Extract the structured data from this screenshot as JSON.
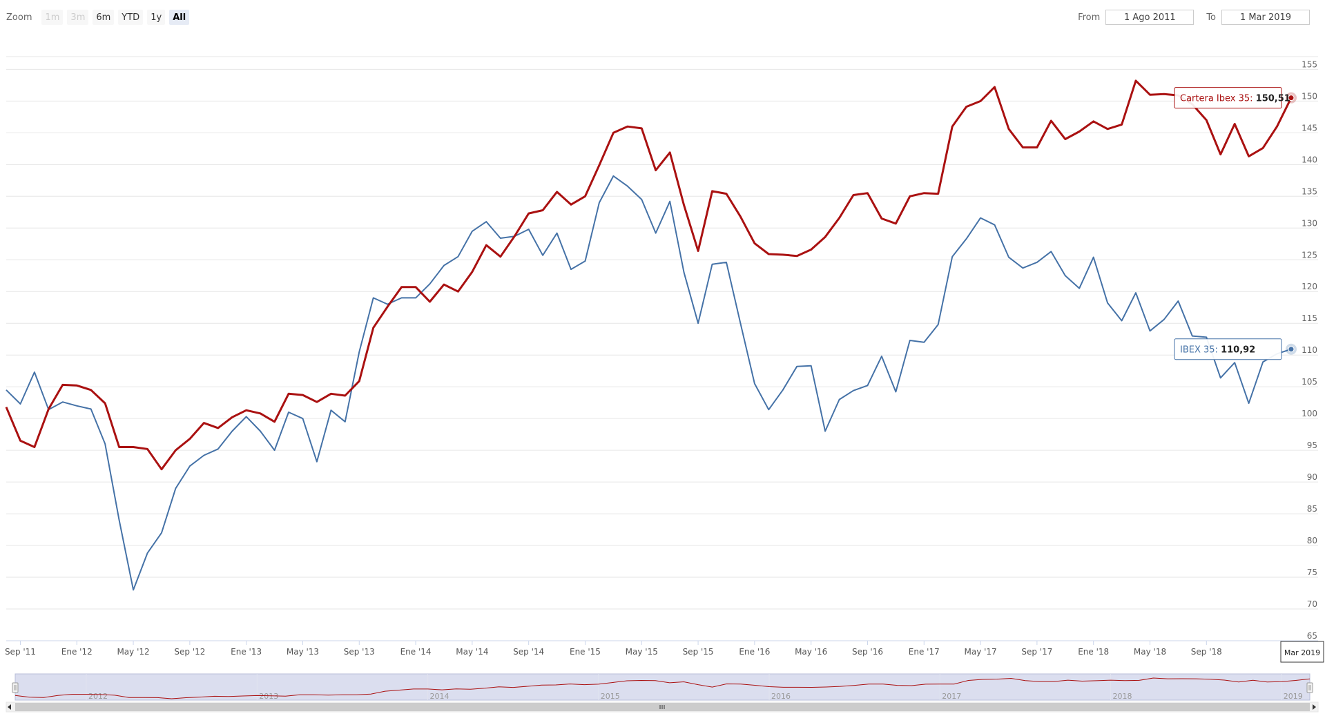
{
  "range_selector": {
    "zoom_label": "Zoom",
    "buttons": [
      {
        "label": "1m",
        "state": "disabled"
      },
      {
        "label": "3m",
        "state": "disabled"
      },
      {
        "label": "6m",
        "state": "normal"
      },
      {
        "label": "YTD",
        "state": "normal"
      },
      {
        "label": "1y",
        "state": "normal"
      },
      {
        "label": "All",
        "state": "active"
      }
    ],
    "from_label": "From",
    "from_value": "1 Ago 2011",
    "to_label": "To",
    "to_value": "1 Mar 2019"
  },
  "chart_data": {
    "type": "line",
    "title": "",
    "xlabel": "",
    "ylabel": "",
    "x_range": [
      "2011-08",
      "2019-03"
    ],
    "ylim": [
      65,
      157
    ],
    "yticks": [
      65,
      70,
      75,
      80,
      85,
      90,
      95,
      100,
      105,
      110,
      115,
      120,
      125,
      130,
      135,
      140,
      145,
      150,
      155
    ],
    "y_axis_side": "right",
    "grid": true,
    "xticks": [
      {
        "label": "Sep '11",
        "date": "2011-09"
      },
      {
        "label": "Ene '12",
        "date": "2012-01"
      },
      {
        "label": "May '12",
        "date": "2012-05"
      },
      {
        "label": "Sep '12",
        "date": "2012-09"
      },
      {
        "label": "Ene '13",
        "date": "2013-01"
      },
      {
        "label": "May '13",
        "date": "2013-05"
      },
      {
        "label": "Sep '13",
        "date": "2013-09"
      },
      {
        "label": "Ene '14",
        "date": "2014-01"
      },
      {
        "label": "May '14",
        "date": "2014-05"
      },
      {
        "label": "Sep '14",
        "date": "2014-09"
      },
      {
        "label": "Ene '15",
        "date": "2015-01"
      },
      {
        "label": "May '15",
        "date": "2015-05"
      },
      {
        "label": "Sep '15",
        "date": "2015-09"
      },
      {
        "label": "Ene '16",
        "date": "2016-01"
      },
      {
        "label": "May '16",
        "date": "2016-05"
      },
      {
        "label": "Sep '16",
        "date": "2016-09"
      },
      {
        "label": "Ene '17",
        "date": "2017-01"
      },
      {
        "label": "May '17",
        "date": "2017-05"
      },
      {
        "label": "Sep '17",
        "date": "2017-09"
      },
      {
        "label": "Ene '18",
        "date": "2018-01"
      },
      {
        "label": "May '18",
        "date": "2018-05"
      },
      {
        "label": "Sep '18",
        "date": "2018-09"
      }
    ],
    "x": [
      "2011-08",
      "2011-09",
      "2011-10",
      "2011-11",
      "2011-12",
      "2012-01",
      "2012-02",
      "2012-03",
      "2012-04",
      "2012-05",
      "2012-06",
      "2012-07",
      "2012-08",
      "2012-09",
      "2012-10",
      "2012-11",
      "2012-12",
      "2013-01",
      "2013-02",
      "2013-03",
      "2013-04",
      "2013-05",
      "2013-06",
      "2013-07",
      "2013-08",
      "2013-09",
      "2013-10",
      "2013-11",
      "2013-12",
      "2014-01",
      "2014-02",
      "2014-03",
      "2014-04",
      "2014-05",
      "2014-06",
      "2014-07",
      "2014-08",
      "2014-09",
      "2014-10",
      "2014-11",
      "2014-12",
      "2015-01",
      "2015-02",
      "2015-03",
      "2015-04",
      "2015-05",
      "2015-06",
      "2015-07",
      "2015-08",
      "2015-09",
      "2015-10",
      "2015-11",
      "2015-12",
      "2016-01",
      "2016-02",
      "2016-03",
      "2016-04",
      "2016-05",
      "2016-06",
      "2016-07",
      "2016-08",
      "2016-09",
      "2016-10",
      "2016-11",
      "2016-12",
      "2017-01",
      "2017-02",
      "2017-03",
      "2017-04",
      "2017-05",
      "2017-06",
      "2017-07",
      "2017-08",
      "2017-09",
      "2017-10",
      "2017-11",
      "2017-12",
      "2018-01",
      "2018-02",
      "2018-03",
      "2018-04",
      "2018-05",
      "2018-06",
      "2018-07",
      "2018-08",
      "2018-09",
      "2018-10",
      "2018-11",
      "2018-12",
      "2019-01",
      "2019-02",
      "2019-03"
    ],
    "series": [
      {
        "name": "IBEX 35",
        "color": "#4572a7",
        "values": [
          104.5,
          102.3,
          107.3,
          101.4,
          102.6,
          102.0,
          101.5,
          96.0,
          84.0,
          73.0,
          78.8,
          82.0,
          89.0,
          92.5,
          94.2,
          95.2,
          98.0,
          100.3,
          98.0,
          95.0,
          101.0,
          100.0,
          93.2,
          101.3,
          99.5,
          110.5,
          119.0,
          118.0,
          119.0,
          119.0,
          121.2,
          124.1,
          125.5,
          129.5,
          131.0,
          128.4,
          128.7,
          129.8,
          125.7,
          129.2,
          123.5,
          124.8,
          134.0,
          138.2,
          136.6,
          134.5,
          129.2,
          134.2,
          123.0,
          115.0,
          124.3,
          124.6,
          115.0,
          105.5,
          101.4,
          104.5,
          108.2,
          108.3,
          98.0,
          103.0,
          104.4,
          105.2,
          109.8,
          104.2,
          112.3,
          112.0,
          114.8,
          125.5,
          128.3,
          131.6,
          130.5,
          125.4,
          123.7,
          124.6,
          126.3,
          122.5,
          120.5,
          125.4,
          118.2,
          115.4,
          119.8,
          113.8,
          115.6,
          118.5,
          113.0,
          112.8,
          106.4,
          108.8,
          102.4,
          108.9,
          110.2,
          110.92
        ]
      },
      {
        "name": "Cartera Ibex 35",
        "color": "#aa1111",
        "values": [
          101.8,
          96.5,
          95.5,
          101.5,
          105.3,
          105.2,
          104.5,
          102.4,
          95.5,
          95.5,
          95.2,
          92.0,
          95.0,
          96.8,
          99.3,
          98.5,
          100.2,
          101.3,
          100.8,
          99.5,
          103.9,
          103.7,
          102.6,
          103.9,
          103.6,
          105.9,
          114.3,
          117.6,
          120.7,
          120.7,
          118.4,
          121.1,
          120.0,
          123.1,
          127.3,
          125.5,
          128.7,
          132.3,
          132.8,
          135.7,
          133.7,
          135.0,
          139.9,
          145.0,
          146.0,
          145.7,
          139.1,
          141.9,
          133.6,
          126.4,
          135.8,
          135.4,
          131.8,
          127.6,
          125.9,
          125.8,
          125.6,
          126.6,
          128.6,
          131.6,
          135.2,
          135.5,
          131.5,
          130.7,
          135.0,
          135.5,
          135.4,
          146.0,
          149.1,
          150.0,
          152.2,
          145.6,
          142.7,
          142.7,
          146.9,
          144.0,
          145.2,
          146.8,
          145.6,
          146.3,
          153.2,
          151.0,
          151.1,
          150.9,
          149.5,
          147.0,
          141.6,
          146.4,
          141.3,
          142.6,
          146.0,
          150.51
        ]
      }
    ],
    "tooltips": [
      {
        "series": "Cartera Ibex 35",
        "label": "Cartera Ibex 35:",
        "value": "150,51",
        "color": "#aa1111"
      },
      {
        "series": "IBEX 35",
        "label": "IBEX 35:",
        "value": "110,92",
        "color": "#4572a7"
      }
    ],
    "crosshair_label": "Mar 2019",
    "navigator": {
      "year_labels": [
        "2012",
        "2013",
        "2014",
        "2015",
        "2016",
        "2017",
        "2018",
        "2019"
      ],
      "fill_color": "#ccd0e8"
    }
  }
}
